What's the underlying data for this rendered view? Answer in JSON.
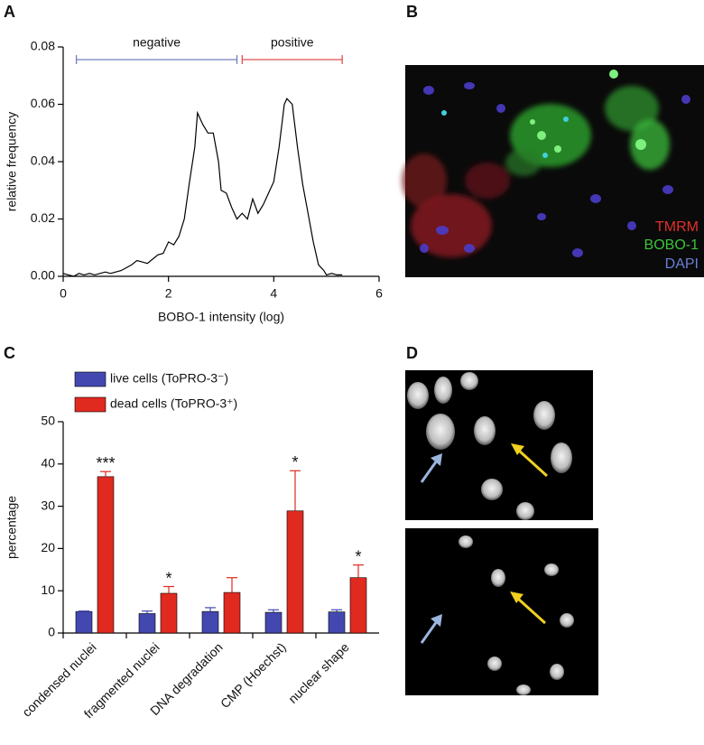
{
  "panel_labels": [
    "A",
    "B",
    "C",
    "D"
  ],
  "image_labels": [
    {
      "text": "TMRM",
      "color": "#e0302a"
    },
    {
      "text": "BOBO-1",
      "color": "#3cc43c"
    },
    {
      "text": "DAPI",
      "color": "#6a7fd8"
    }
  ],
  "chart_data": [
    {
      "type": "line",
      "color": "#000000",
      "x": [
        0,
        0.1,
        0.2,
        0.3,
        0.4,
        0.5,
        0.6,
        0.7,
        0.8,
        0.9,
        1.0,
        1.1,
        1.2,
        1.3,
        1.4,
        1.5,
        1.6,
        1.7,
        1.8,
        1.9,
        2.0,
        2.1,
        2.2,
        2.3,
        2.4,
        2.5,
        2.55,
        2.65,
        2.75,
        2.85,
        2.95,
        3.0,
        3.1,
        3.2,
        3.3,
        3.4,
        3.5,
        3.6,
        3.7,
        3.8,
        3.9,
        4.0,
        4.1,
        4.2,
        4.25,
        4.35,
        4.45,
        4.55,
        4.65,
        4.75,
        4.85,
        4.95,
        5.0,
        5.1,
        5.2,
        5.3
      ],
      "values": [
        0.001,
        0.0005,
        0,
        0.001,
        0.0005,
        0.001,
        0.0005,
        0.001,
        0.0015,
        0.001,
        0.0015,
        0.002,
        0.003,
        0.004,
        0.0055,
        0.005,
        0.0045,
        0.006,
        0.0075,
        0.008,
        0.012,
        0.011,
        0.014,
        0.02,
        0.033,
        0.045,
        0.057,
        0.053,
        0.05,
        0.05,
        0.04,
        0.03,
        0.029,
        0.024,
        0.02,
        0.022,
        0.02,
        0.027,
        0.022,
        0.025,
        0.029,
        0.033,
        0.045,
        0.06,
        0.062,
        0.06,
        0.045,
        0.032,
        0.022,
        0.012,
        0.004,
        0.002,
        0.0005,
        0.001,
        0.0005,
        0.0005
      ],
      "xlim": [
        0,
        6
      ],
      "ylim": [
        0,
        0.08
      ],
      "xticks": [
        0,
        2,
        4,
        6
      ],
      "yticks": [
        {
          "value": 0,
          "label": "0.00"
        },
        0.02,
        0.04,
        0.06,
        0.08
      ],
      "xlabel": "BOBO-1 intensity (log)",
      "ylabel": "relative frequency",
      "ranges": [
        {
          "label": "negative",
          "x": [
            0.25,
            3.3
          ],
          "color": "#7080c0"
        },
        {
          "label": "positive",
          "x": [
            3.4,
            5.3
          ],
          "color": "#e05050"
        }
      ]
    },
    {
      "type": "bar",
      "categories": [
        "condensed nuclei",
        "fragmented nuclei",
        "DNA degradation",
        "CMP (Hoechst)",
        "nuclear shape"
      ],
      "series": [
        {
          "name": "live cells (ToPRO-3⁻)",
          "color": "#4348b0",
          "values": [
            5.1,
            4.6,
            5.1,
            4.9,
            5.0
          ],
          "errors": [
            0.1,
            0.6,
            0.9,
            0.6,
            0.5
          ]
        },
        {
          "name": "dead cells (ToPRO-3⁺)",
          "color": "#e02a20",
          "values": [
            37.0,
            9.4,
            9.6,
            28.9,
            13.1
          ],
          "errors": [
            1.2,
            1.6,
            3.5,
            9.5,
            3.0
          ]
        }
      ],
      "significance": [
        "***",
        "*",
        null,
        "*",
        "*"
      ],
      "ylim": [
        0,
        50
      ],
      "yticks": [
        0,
        10,
        20,
        30,
        40,
        50
      ],
      "ylabel": "percentage"
    }
  ]
}
